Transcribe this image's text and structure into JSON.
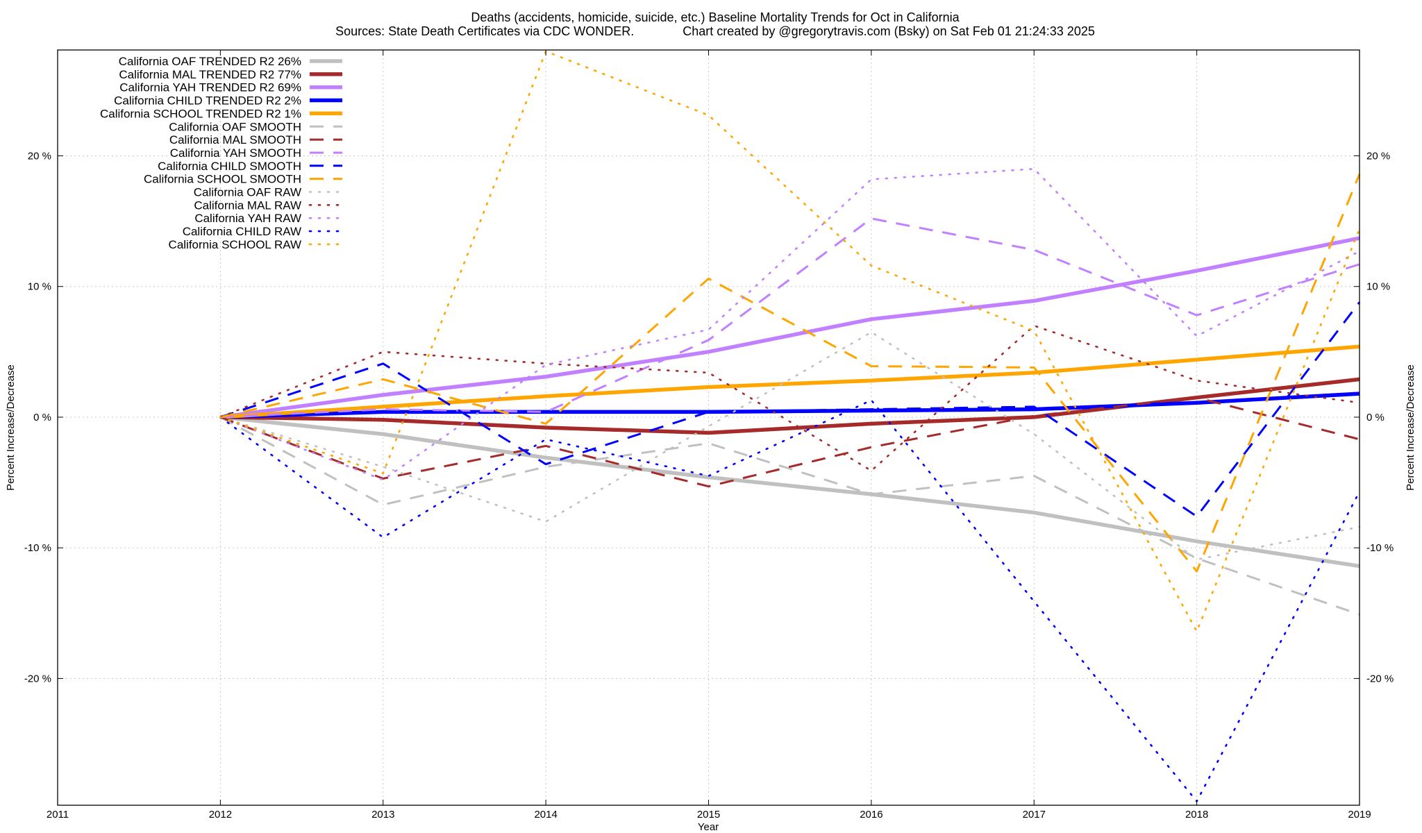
{
  "chart_data": {
    "type": "line",
    "title": "Deaths (accidents, homicide, suicide, etc.)  Baseline Mortality Trends for Oct in California",
    "subtitle": "Sources: State Death Certificates via CDC WONDER.              Chart created by @gregorytravis.com (Bsky) on Sat Feb 01 21:24:33 2025",
    "xlabel": "Year",
    "ylabel": "Percent Increase/Decrease",
    "y2label": "Percent Increase/Decrease",
    "xlim": [
      2011,
      2019
    ],
    "ylim": [
      -29.7,
      28.1
    ],
    "xticks": [
      "2011",
      "2012",
      "2013",
      "2014",
      "2015",
      "2016",
      "2017",
      "2018",
      "2019"
    ],
    "xtick_values": [
      2011,
      2012,
      2013,
      2014,
      2015,
      2016,
      2017,
      2018,
      2019
    ],
    "yticks": [
      "20 %",
      "10 %",
      "0 %",
      "-10 %",
      "-20 %"
    ],
    "ytick_values": [
      20,
      10,
      0,
      -10,
      -20
    ],
    "grid": true,
    "legend_position": "top-left",
    "x": [
      2012,
      2013,
      2014,
      2015,
      2016,
      2017,
      2018,
      2019
    ],
    "series": [
      {
        "name": "California OAF TRENDED R2  26%",
        "color": "#c0c0c0",
        "style": "solid",
        "values": [
          0,
          -1.3,
          -3.1,
          -4.6,
          -5.9,
          -7.3,
          -9.5,
          -11.4
        ]
      },
      {
        "name": "California MAL TRENDED R2  77%",
        "color": "#a52a2a",
        "style": "solid",
        "values": [
          0,
          -0.2,
          -0.8,
          -1.2,
          -0.5,
          0.0,
          1.5,
          2.9
        ]
      },
      {
        "name": "California YAH TRENDED R2  69%",
        "color": "#c080ff",
        "style": "solid",
        "values": [
          0,
          1.7,
          3.1,
          5.0,
          7.5,
          8.9,
          11.2,
          13.7
        ]
      },
      {
        "name": "California CHILD TRENDED R2   2%",
        "color": "#0000ff",
        "style": "solid",
        "values": [
          0,
          0.4,
          0.4,
          0.4,
          0.5,
          0.6,
          1.1,
          1.8
        ]
      },
      {
        "name": "California SCHOOL TRENDED R2   1%",
        "color": "#ffa500",
        "style": "solid",
        "values": [
          0,
          0.8,
          1.6,
          2.3,
          2.8,
          3.4,
          4.4,
          5.4
        ]
      },
      {
        "name": "California OAF SMOOTH",
        "color": "#c0c0c0",
        "style": "dashed",
        "values": [
          0,
          -6.7,
          -3.8,
          -2.0,
          -5.9,
          -4.5,
          -10.8,
          -15.1
        ]
      },
      {
        "name": "California MAL SMOOTH",
        "color": "#a52a2a",
        "style": "dashed",
        "values": [
          0,
          -4.7,
          -2.2,
          -5.3,
          -2.3,
          0.1,
          1.5,
          -1.7
        ]
      },
      {
        "name": "California YAH SMOOTH",
        "color": "#c080ff",
        "style": "dashed",
        "values": [
          0,
          0.6,
          0.4,
          5.9,
          15.2,
          12.8,
          7.8,
          11.7
        ]
      },
      {
        "name": "California CHILD SMOOTH",
        "color": "#0000ff",
        "style": "dashed",
        "values": [
          0,
          4.1,
          -3.6,
          0.4,
          0.6,
          0.8,
          -7.6,
          8.8
        ]
      },
      {
        "name": "California SCHOOL SMOOTH",
        "color": "#ffa500",
        "style": "dashed",
        "values": [
          0,
          2.9,
          -0.5,
          10.6,
          3.9,
          3.8,
          -11.8,
          18.6
        ]
      },
      {
        "name": "California OAF RAW",
        "color": "#c0c0c0",
        "style": "dotted",
        "values": [
          0,
          -3.8,
          -8.0,
          -0.7,
          6.5,
          -1.3,
          -10.9,
          -8.4
        ]
      },
      {
        "name": "California MAL RAW",
        "color": "#a52a2a",
        "style": "dotted",
        "values": [
          0,
          5.0,
          4.1,
          3.4,
          -4.1,
          7.0,
          2.8,
          1.1
        ]
      },
      {
        "name": "California YAH RAW",
        "color": "#c080ff",
        "style": "dotted",
        "values": [
          0,
          -4.8,
          4.0,
          6.7,
          18.2,
          19.0,
          6.2,
          12.7
        ]
      },
      {
        "name": "California CHILD RAW",
        "color": "#0000ff",
        "style": "dotted",
        "values": [
          0,
          -9.2,
          -1.7,
          -4.5,
          1.3,
          -14.1,
          -29.4,
          -5.7
        ]
      },
      {
        "name": "California SCHOOL RAW",
        "color": "#ffa500",
        "style": "dotted",
        "values": [
          0,
          -4.3,
          28.0,
          23.1,
          11.6,
          6.6,
          -16.4,
          14.4
        ]
      }
    ]
  }
}
